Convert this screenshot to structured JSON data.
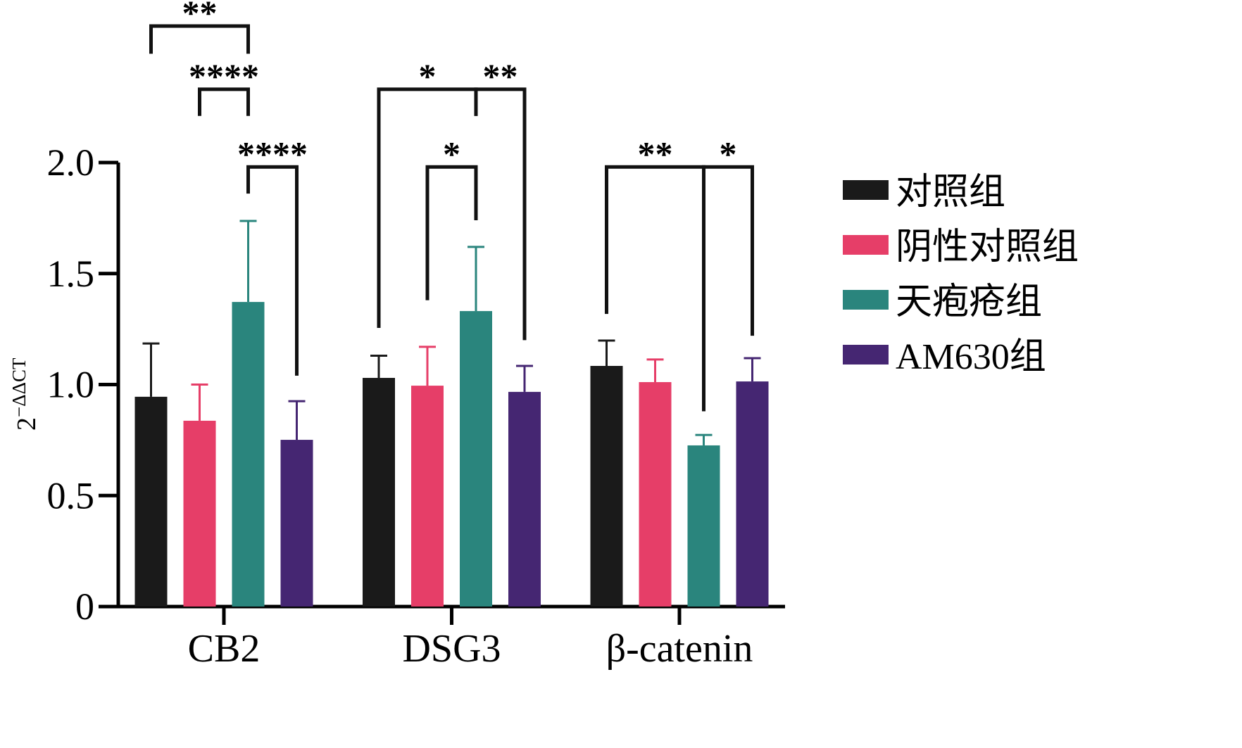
{
  "chart_data": {
    "type": "bar",
    "title": "",
    "xlabel": "",
    "ylabel": "2",
    "ylabel_superscript": "−ΔΔCT",
    "ylim": [
      0,
      2.0
    ],
    "yticks": [
      0,
      0.5,
      1.0,
      1.5,
      2.0
    ],
    "ytick_labels": [
      "0",
      "0.5",
      "1.0",
      "1.5",
      "2.0"
    ],
    "grid": false,
    "legend_position": "right",
    "categories": [
      "CB2",
      "DSG3",
      "β-catenin"
    ],
    "series": [
      {
        "name": "对照组",
        "color": "#1a1a1a",
        "values": [
          0.945,
          1.03,
          1.084
        ],
        "error_upper": [
          1.185,
          1.13,
          1.198
        ]
      },
      {
        "name": "阴性对照组",
        "color": "#e63e68",
        "values": [
          0.837,
          0.995,
          1.011
        ],
        "error_upper": [
          1.0,
          1.17,
          1.113
        ]
      },
      {
        "name": "天疱疮组",
        "color": "#2a857d",
        "values": [
          1.372,
          1.331,
          0.726
        ],
        "error_upper": [
          1.737,
          1.62,
          0.773
        ]
      },
      {
        "name": "AM630组",
        "color": "#452672",
        "values": [
          0.751,
          0.967,
          1.014
        ],
        "error_upper": [
          0.925,
          1.084,
          1.119
        ]
      }
    ],
    "significance": [
      {
        "category": 0,
        "from": 0,
        "to": 2,
        "label": "**",
        "level": 2.615,
        "left_end": 2.49,
        "right_end": 2.49
      },
      {
        "category": 0,
        "from": 1,
        "to": 2,
        "label": "****",
        "level": 2.33,
        "left_end": 2.21,
        "right_end": 2.21
      },
      {
        "category": 0,
        "from": 2,
        "to": 3,
        "label": "****",
        "level": 1.98,
        "left_end": 1.86,
        "right_end": 1.04
      },
      {
        "category": 1,
        "from": 0,
        "to": 2,
        "label": "*",
        "level": 2.33,
        "left_end": 1.255,
        "right_end": 2.21
      },
      {
        "category": 1,
        "from": 2,
        "to": 3,
        "label": "**",
        "level": 2.33,
        "left_end": 2.21,
        "right_end": 1.2
      },
      {
        "category": 1,
        "from": 1,
        "to": 2,
        "label": "*",
        "level": 1.98,
        "left_end": 1.38,
        "right_end": 1.74
      },
      {
        "category": 2,
        "from": 0,
        "to": 2,
        "label": "**",
        "level": 1.98,
        "left_end": 1.318,
        "right_end": 0.88
      },
      {
        "category": 2,
        "from": 2,
        "to": 3,
        "label": "*",
        "level": 1.98,
        "left_end": 0.88,
        "right_end": 1.22
      }
    ]
  }
}
